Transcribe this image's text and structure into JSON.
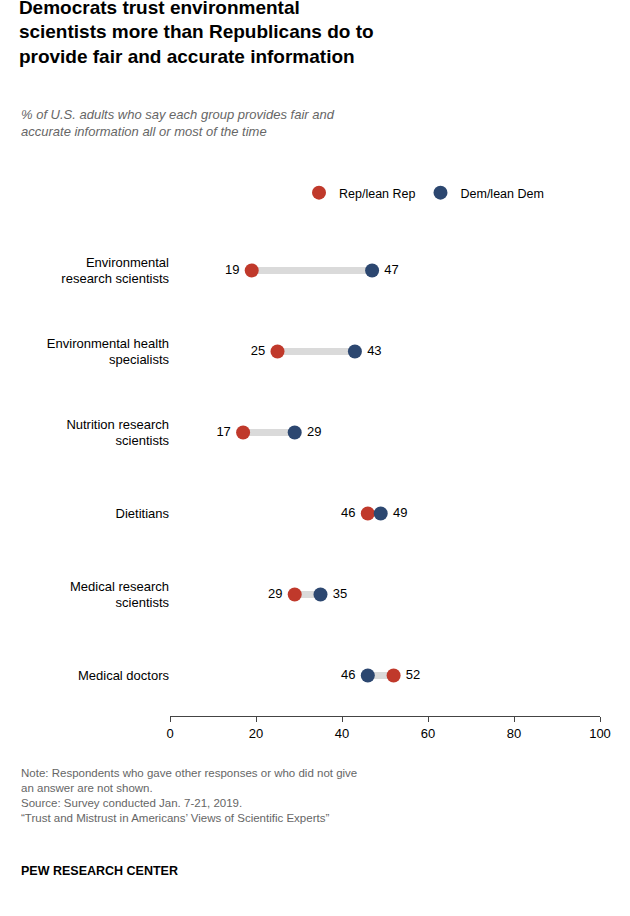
{
  "chart_data": {
    "type": "dot",
    "title": "Democrats trust environmental\nscientists more than Republicans do to\nprovide fair and accurate information",
    "subtitle": "% of U.S. adults who say each group provides fair and\naccurate information all or most of the time",
    "categories": [
      "Environmental\nresearch scientists",
      "Environmental health\nspecialists",
      "Nutrition research\nscientists",
      "Dietitians",
      "Medical research\nscientists",
      "Medical doctors"
    ],
    "series": [
      {
        "name": "Rep/lean Rep",
        "color": "#C0392B",
        "values": [
          19,
          25,
          17,
          46,
          29,
          52
        ]
      },
      {
        "name": "Dem/lean Dem",
        "color": "#2C4770",
        "values": [
          47,
          43,
          29,
          49,
          35,
          46
        ]
      }
    ],
    "xlim": [
      0,
      100
    ],
    "xticks": [
      0,
      20,
      40,
      60,
      80,
      100
    ],
    "grid": false,
    "legend": "top",
    "data_labels": true,
    "orientation": "horizontal",
    "annotations": [
      "Note: Respondents who gave other responses or who did not give",
      "an answer are not shown.",
      "Source: Survey conducted Jan. 7-21, 2019.",
      "“Trust and Mistrust in Americans’ Views of Scientific Experts”",
      "PEW RESEARCH CENTER"
    ]
  }
}
